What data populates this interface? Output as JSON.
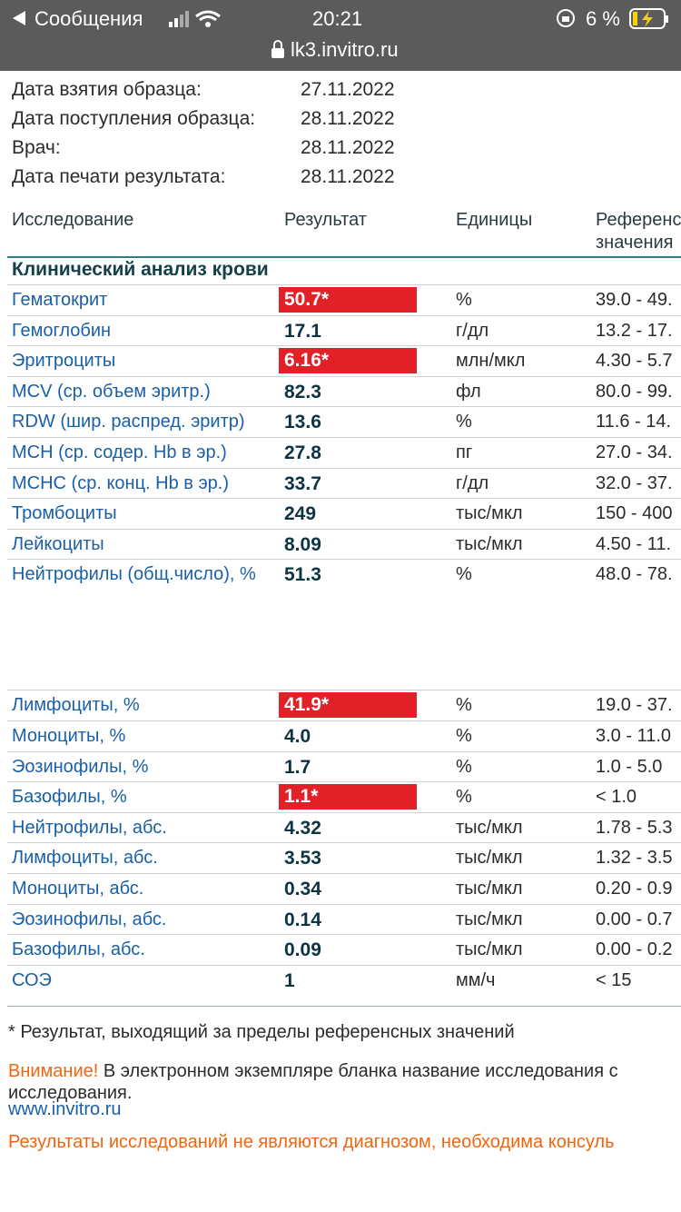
{
  "status": {
    "back": "Сообщения",
    "time": "20:21",
    "battery": "6 %",
    "url": "lk3.invitro.ru"
  },
  "info": [
    [
      "Дата взятия образца:",
      "27.11.2022"
    ],
    [
      "Дата поступления образца:",
      "28.11.2022"
    ],
    [
      "Врач:",
      "28.11.2022"
    ],
    [
      "Дата печати результата:",
      "28.11.2022"
    ]
  ],
  "table": {
    "headers": [
      "Исследование",
      "Результат",
      "Единицы",
      "Референс"
    ],
    "header_ref_line2": "значения",
    "section": "Клинический анализ крови",
    "rows": [
      {
        "name": "Гематокрит",
        "result": "50.7*",
        "flagged": true,
        "unit": "%",
        "ref": "39.0 - 49."
      },
      {
        "name": "Гемоглобин",
        "result": "17.1",
        "flagged": false,
        "unit": "г/дл",
        "ref": "13.2 - 17."
      },
      {
        "name": "Эритроциты",
        "result": "6.16*",
        "flagged": true,
        "unit": "млн/мкл",
        "ref": "4.30 - 5.7"
      },
      {
        "name": "MCV (ср. объем эритр.)",
        "result": "82.3",
        "flagged": false,
        "unit": "фл",
        "ref": "80.0 - 99."
      },
      {
        "name": "RDW (шир. распред. эритр)",
        "result": "13.6",
        "flagged": false,
        "unit": "%",
        "ref": "11.6 - 14."
      },
      {
        "name": "MCH (ср. содер. Hb в эр.)",
        "result": "27.8",
        "flagged": false,
        "unit": "пг",
        "ref": "27.0 - 34."
      },
      {
        "name": "MCHC (ср. конц. Hb в эр.)",
        "result": "33.7",
        "flagged": false,
        "unit": "г/дл",
        "ref": "32.0 - 37."
      },
      {
        "name": "Тромбоциты",
        "result": "249",
        "flagged": false,
        "unit": "тыс/мкл",
        "ref": "150 - 400"
      },
      {
        "name": "Лейкоциты",
        "result": "8.09",
        "flagged": false,
        "unit": "тыс/мкл",
        "ref": "4.50 - 11."
      },
      {
        "name": "Нейтрофилы (общ.число), %",
        "result": "51.3",
        "flagged": false,
        "unit": "%",
        "ref": "48.0 - 78."
      },
      {
        "name": "Лимфоциты, %",
        "result": "41.9*",
        "flagged": true,
        "unit": "%",
        "ref": "19.0 - 37."
      },
      {
        "name": "Моноциты, %",
        "result": "4.0",
        "flagged": false,
        "unit": "%",
        "ref": "3.0 - 11.0"
      },
      {
        "name": "Эозинофилы, %",
        "result": "1.7",
        "flagged": false,
        "unit": "%",
        "ref": "1.0 - 5.0"
      },
      {
        "name": "Базофилы, %",
        "result": "1.1*",
        "flagged": true,
        "unit": "%",
        "ref": "< 1.0"
      },
      {
        "name": "Нейтрофилы, абс.",
        "result": "4.32",
        "flagged": false,
        "unit": "тыс/мкл",
        "ref": "1.78 - 5.3"
      },
      {
        "name": "Лимфоциты, абс.",
        "result": "3.53",
        "flagged": false,
        "unit": "тыс/мкл",
        "ref": "1.32 - 3.5"
      },
      {
        "name": "Моноциты, абс.",
        "result": "0.34",
        "flagged": false,
        "unit": "тыс/мкл",
        "ref": "0.20 - 0.9"
      },
      {
        "name": "Эозинофилы, абс.",
        "result": "0.14",
        "flagged": false,
        "unit": "тыс/мкл",
        "ref": "0.00 - 0.7"
      },
      {
        "name": "Базофилы, абс.",
        "result": "0.09",
        "flagged": false,
        "unit": "тыс/мкл",
        "ref": "0.00 - 0.2"
      },
      {
        "name": "СОЭ",
        "result": "1",
        "flagged": false,
        "unit": "мм/ч",
        "ref": "< 15"
      }
    ]
  },
  "notes": {
    "footnote": "* Результат, выходящий за пределы референсных значений",
    "warning_label": "Внимание!",
    "warning_text": " В электронном экземпляре бланка название исследования с",
    "warning_text2": "исследования.",
    "site": "www.invitro.ru",
    "disclaimer": "Результаты исследований не являются диагнозом, необходима консуль"
  }
}
